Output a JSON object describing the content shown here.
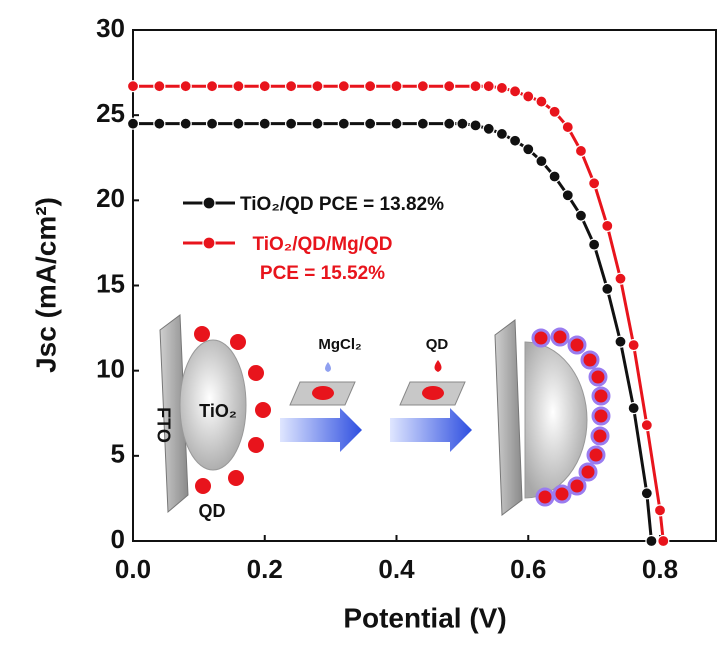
{
  "chart_data": {
    "type": "line",
    "x_label": "Potential (V)",
    "y_label": "Jsc (mA/cm²)",
    "xlim": [
      0,
      0.885
    ],
    "ylim": [
      0,
      30
    ],
    "xticks": [
      {
        "value": 0,
        "label": "0.0"
      },
      0.2,
      0.4,
      0.6,
      0.8
    ],
    "yticks": [
      0,
      5,
      10,
      15,
      20,
      25,
      30
    ],
    "grid": false,
    "series": [
      {
        "name": "TiO₂/QD PCE = 13.82%",
        "color": "#111111",
        "x": [
          0,
          0.04,
          0.08,
          0.12,
          0.16,
          0.2,
          0.24,
          0.28,
          0.32,
          0.36,
          0.4,
          0.44,
          0.48,
          0.5,
          0.52,
          0.54,
          0.56,
          0.58,
          0.6,
          0.62,
          0.64,
          0.66,
          0.68,
          0.7,
          0.72,
          0.74,
          0.76,
          0.78,
          0.787
        ],
        "values": [
          24.5,
          24.5,
          24.5,
          24.5,
          24.5,
          24.5,
          24.5,
          24.5,
          24.5,
          24.5,
          24.5,
          24.5,
          24.5,
          24.5,
          24.4,
          24.2,
          23.9,
          23.5,
          23.0,
          22.3,
          21.4,
          20.3,
          19.1,
          17.4,
          14.8,
          11.7,
          7.8,
          2.8,
          0
        ]
      },
      {
        "name": "TiO₂/QD/Mg/QD PCE = 15.52%",
        "color": "#e8141c",
        "x": [
          0,
          0.04,
          0.08,
          0.12,
          0.16,
          0.2,
          0.24,
          0.28,
          0.32,
          0.36,
          0.4,
          0.44,
          0.48,
          0.52,
          0.54,
          0.56,
          0.58,
          0.6,
          0.62,
          0.64,
          0.66,
          0.68,
          0.7,
          0.72,
          0.74,
          0.76,
          0.78,
          0.8,
          0.805
        ],
        "values": [
          26.7,
          26.7,
          26.7,
          26.7,
          26.7,
          26.7,
          26.7,
          26.7,
          26.7,
          26.7,
          26.7,
          26.7,
          26.7,
          26.7,
          26.7,
          26.6,
          26.4,
          26.1,
          25.8,
          25.2,
          24.3,
          22.9,
          21.0,
          18.5,
          15.4,
          11.5,
          6.8,
          1.8,
          0
        ]
      }
    ],
    "inset_labels": [
      "FTO",
      "TiO₂",
      "QD",
      "MgCl₂",
      "QD"
    ]
  }
}
